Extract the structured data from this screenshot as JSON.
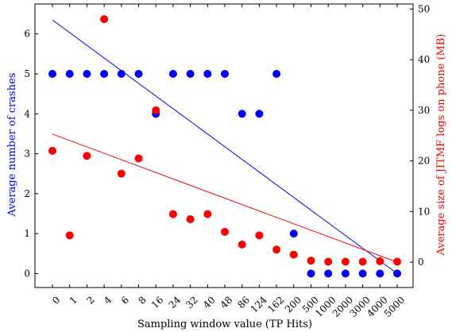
{
  "chart_data": {
    "type": "scatter",
    "xlabel": "Sampling window value (TP Hits)",
    "ylabel_left": "Average number of crashes",
    "ylabel_right": "Average size of JITMF logs on phone (MB)",
    "categories": [
      "0",
      "1",
      "2",
      "4",
      "6",
      "8",
      "16",
      "24",
      "32",
      "40",
      "48",
      "86",
      "124",
      "162",
      "200",
      "500",
      "1000",
      "2000",
      "3000",
      "4000",
      "5000"
    ],
    "left_axis": {
      "ylim": [
        -0.35,
        6.75
      ],
      "ticks": [
        0,
        1,
        2,
        3,
        4,
        5,
        6
      ]
    },
    "right_axis": {
      "ylim": [
        -5,
        51
      ],
      "ticks": [
        0,
        10,
        20,
        30,
        40,
        50
      ]
    },
    "grid": false,
    "series": [
      {
        "axis": "left",
        "color": "#0000ff",
        "values": [
          5,
          5,
          5,
          5,
          5,
          5,
          4,
          5,
          5,
          5,
          5,
          4,
          4,
          5,
          1,
          0,
          0,
          0,
          0,
          0,
          0
        ],
        "trendline": [
          6.35,
          0.0
        ]
      },
      {
        "axis": "right",
        "color": "#ff0000",
        "values": [
          22,
          5.3,
          21,
          48,
          17.5,
          20.5,
          30,
          9.5,
          8.5,
          9.5,
          6,
          3.5,
          5.3,
          2.5,
          1.5,
          0.3,
          0.1,
          0.1,
          0.1,
          0.2,
          0.1
        ],
        "trendline": [
          25.3,
          0.0
        ]
      }
    ]
  }
}
